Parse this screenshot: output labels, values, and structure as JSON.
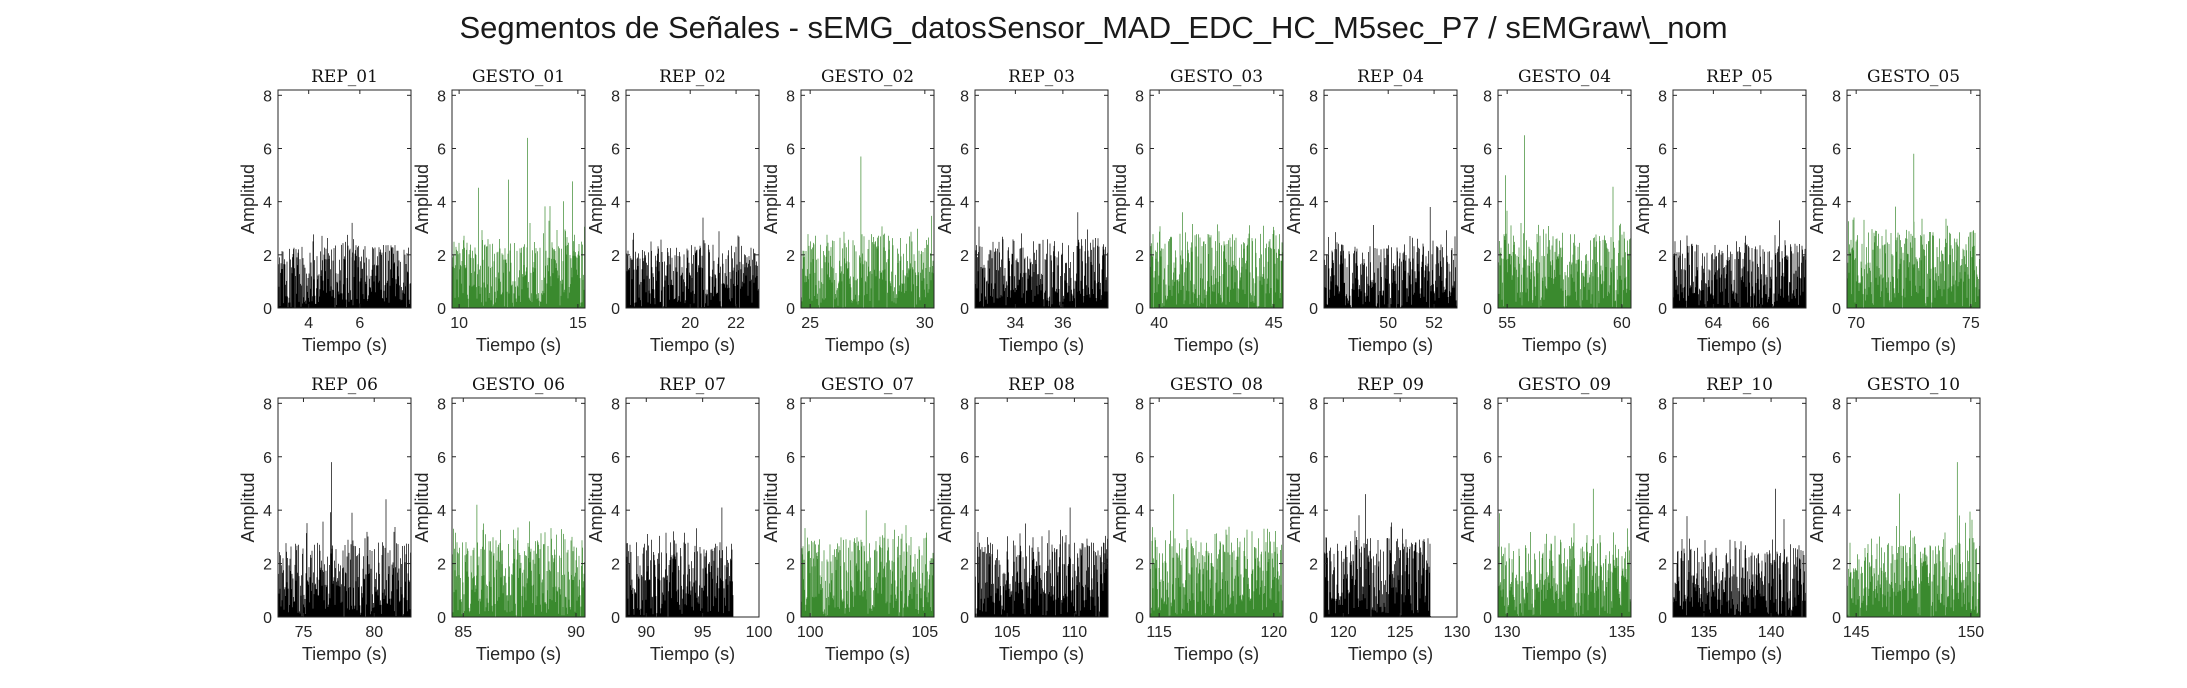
{
  "title": "Segmentos de Señales - sEMG_datosSensor_MAD_EDC_HC_M5sec_P7 / sEMGraw\\_nom",
  "colors": {
    "rep": "#000000",
    "gesto": "#3a8a2e",
    "axis": "#262626"
  },
  "chart_data": {
    "type": "line",
    "xlabel": "Tiempo (s)",
    "ylabel": "Amplitud",
    "ylim": [
      0,
      8.2
    ],
    "yticks": [
      0,
      2,
      4,
      6,
      8
    ],
    "grid": false,
    "panels": [
      {
        "title": "REP_01",
        "kind": "rep",
        "xlim": [
          2.8,
          8.0
        ],
        "xticks": [
          4,
          6
        ],
        "data_start": 2.8,
        "data_end": 8.0,
        "mean": 1.2,
        "peak": 3.2
      },
      {
        "title": "GESTO_01",
        "kind": "gesto",
        "xlim": [
          9.7,
          15.3
        ],
        "xticks": [
          10,
          15
        ],
        "data_start": 9.7,
        "data_end": 15.3,
        "mean": 1.3,
        "peak": 6.4
      },
      {
        "title": "REP_02",
        "kind": "rep",
        "xlim": [
          17.2,
          23.0
        ],
        "xticks": [
          20,
          22
        ],
        "data_start": 17.2,
        "data_end": 23.0,
        "mean": 1.2,
        "peak": 3.4
      },
      {
        "title": "GESTO_02",
        "kind": "gesto",
        "xlim": [
          24.6,
          30.4
        ],
        "xticks": [
          25,
          30
        ],
        "data_start": 24.6,
        "data_end": 30.4,
        "mean": 1.4,
        "peak": 5.7
      },
      {
        "title": "REP_03",
        "kind": "rep",
        "xlim": [
          32.3,
          37.9
        ],
        "xticks": [
          34,
          36
        ],
        "data_start": 32.3,
        "data_end": 37.9,
        "mean": 1.3,
        "peak": 3.6
      },
      {
        "title": "GESTO_03",
        "kind": "gesto",
        "xlim": [
          39.6,
          45.4
        ],
        "xticks": [
          40,
          45
        ],
        "data_start": 39.6,
        "data_end": 45.4,
        "mean": 1.4,
        "peak": 3.6
      },
      {
        "title": "REP_04",
        "kind": "rep",
        "xlim": [
          47.2,
          53.0
        ],
        "xticks": [
          50,
          52
        ],
        "data_start": 47.2,
        "data_end": 53.0,
        "mean": 1.2,
        "peak": 3.8
      },
      {
        "title": "GESTO_04",
        "kind": "gesto",
        "xlim": [
          54.6,
          60.4
        ],
        "xticks": [
          55,
          60
        ],
        "data_start": 54.6,
        "data_end": 60.4,
        "mean": 1.4,
        "peak": 6.5
      },
      {
        "title": "REP_05",
        "kind": "rep",
        "xlim": [
          62.3,
          67.9
        ],
        "xticks": [
          64,
          66
        ],
        "data_start": 62.3,
        "data_end": 67.9,
        "mean": 1.2,
        "peak": 3.3
      },
      {
        "title": "GESTO_05",
        "kind": "gesto",
        "xlim": [
          69.6,
          75.4
        ],
        "xticks": [
          70,
          75
        ],
        "data_start": 69.6,
        "data_end": 75.4,
        "mean": 1.5,
        "peak": 5.8
      },
      {
        "title": "REP_06",
        "kind": "rep",
        "xlim": [
          73.2,
          82.6
        ],
        "xticks": [
          75,
          80
        ],
        "data_start": 73.2,
        "data_end": 82.6,
        "mean": 1.4,
        "peak": 5.8
      },
      {
        "title": "GESTO_06",
        "kind": "gesto",
        "xlim": [
          84.5,
          90.4
        ],
        "xticks": [
          85,
          90
        ],
        "data_start": 84.5,
        "data_end": 90.4,
        "mean": 1.5,
        "peak": 4.2
      },
      {
        "title": "REP_07",
        "kind": "rep",
        "xlim": [
          88.2,
          100.0
        ],
        "xticks": [
          90,
          95,
          100
        ],
        "data_start": 88.2,
        "data_end": 97.7,
        "mean": 1.4,
        "peak": 4.1
      },
      {
        "title": "GESTO_07",
        "kind": "gesto",
        "xlim": [
          99.6,
          105.4
        ],
        "xticks": [
          100,
          105
        ],
        "data_start": 99.6,
        "data_end": 105.4,
        "mean": 1.5,
        "peak": 4.0
      },
      {
        "title": "REP_08",
        "kind": "rep",
        "xlim": [
          102.6,
          112.5
        ],
        "xticks": [
          105,
          110
        ],
        "data_start": 102.6,
        "data_end": 112.5,
        "mean": 1.4,
        "peak": 4.1
      },
      {
        "title": "GESTO_08",
        "kind": "gesto",
        "xlim": [
          114.6,
          120.4
        ],
        "xticks": [
          115,
          120
        ],
        "data_start": 114.6,
        "data_end": 120.4,
        "mean": 1.5,
        "peak": 4.6
      },
      {
        "title": "REP_09",
        "kind": "rep",
        "xlim": [
          118.3,
          130.0
        ],
        "xticks": [
          120,
          125,
          130
        ],
        "data_start": 118.3,
        "data_end": 127.7,
        "mean": 1.5,
        "peak": 4.6
      },
      {
        "title": "GESTO_09",
        "kind": "gesto",
        "xlim": [
          129.6,
          135.4
        ],
        "xticks": [
          130,
          135
        ],
        "data_start": 129.6,
        "data_end": 135.4,
        "mean": 1.4,
        "peak": 4.8
      },
      {
        "title": "REP_10",
        "kind": "rep",
        "xlim": [
          132.7,
          142.6
        ],
        "xticks": [
          135,
          140
        ],
        "data_start": 132.7,
        "data_end": 142.6,
        "mean": 1.3,
        "peak": 4.8
      },
      {
        "title": "GESTO_10",
        "kind": "gesto",
        "xlim": [
          144.6,
          150.4
        ],
        "xticks": [
          145,
          150
        ],
        "data_start": 144.6,
        "data_end": 150.4,
        "mean": 1.4,
        "peak": 5.8
      }
    ]
  }
}
